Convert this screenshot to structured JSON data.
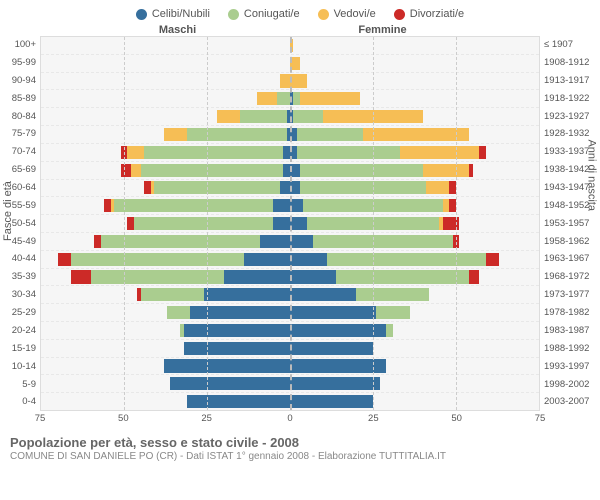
{
  "legend": [
    {
      "label": "Celibi/Nubili",
      "color": "#366f9d"
    },
    {
      "label": "Coniugati/e",
      "color": "#aacd8f"
    },
    {
      "label": "Vedovi/e",
      "color": "#f6be55"
    },
    {
      "label": "Divorziati/e",
      "color": "#cc2a27"
    }
  ],
  "headers": {
    "male": "Maschi",
    "female": "Femmine"
  },
  "axis_labels": {
    "left": "Fasce di età",
    "right": "Anni di nascita"
  },
  "age_labels": [
    "100+",
    "95-99",
    "90-94",
    "85-89",
    "80-84",
    "75-79",
    "70-74",
    "65-69",
    "60-64",
    "55-59",
    "50-54",
    "45-49",
    "40-44",
    "35-39",
    "30-34",
    "25-29",
    "20-24",
    "15-19",
    "10-14",
    "5-9",
    "0-4"
  ],
  "birth_labels": [
    "≤ 1907",
    "1908-1912",
    "1913-1917",
    "1918-1922",
    "1923-1927",
    "1928-1932",
    "1933-1937",
    "1938-1942",
    "1943-1947",
    "1948-1952",
    "1953-1957",
    "1958-1962",
    "1963-1967",
    "1968-1972",
    "1973-1977",
    "1978-1982",
    "1983-1987",
    "1988-1992",
    "1993-1997",
    "1998-2002",
    "2003-2007"
  ],
  "x_max": 75,
  "x_ticks": [
    75,
    50,
    25,
    0,
    25,
    50,
    75
  ],
  "male": [
    {
      "c": 0,
      "m": 0,
      "w": 0,
      "d": 0
    },
    {
      "c": 0,
      "m": 0,
      "w": 0,
      "d": 0
    },
    {
      "c": 0,
      "m": 0,
      "w": 3,
      "d": 0
    },
    {
      "c": 0,
      "m": 4,
      "w": 6,
      "d": 0
    },
    {
      "c": 1,
      "m": 14,
      "w": 7,
      "d": 0
    },
    {
      "c": 1,
      "m": 30,
      "w": 7,
      "d": 0
    },
    {
      "c": 2,
      "m": 42,
      "w": 5,
      "d": 2
    },
    {
      "c": 2,
      "m": 43,
      "w": 3,
      "d": 3
    },
    {
      "c": 3,
      "m": 38,
      "w": 1,
      "d": 2
    },
    {
      "c": 5,
      "m": 48,
      "w": 1,
      "d": 2
    },
    {
      "c": 5,
      "m": 42,
      "w": 0,
      "d": 2
    },
    {
      "c": 9,
      "m": 48,
      "w": 0,
      "d": 2
    },
    {
      "c": 14,
      "m": 52,
      "w": 0,
      "d": 4
    },
    {
      "c": 20,
      "m": 40,
      "w": 0,
      "d": 6
    },
    {
      "c": 26,
      "m": 19,
      "w": 0,
      "d": 1
    },
    {
      "c": 30,
      "m": 7,
      "w": 0,
      "d": 0
    },
    {
      "c": 32,
      "m": 1,
      "w": 0,
      "d": 0
    },
    {
      "c": 32,
      "m": 0,
      "w": 0,
      "d": 0
    },
    {
      "c": 38,
      "m": 0,
      "w": 0,
      "d": 0
    },
    {
      "c": 36,
      "m": 0,
      "w": 0,
      "d": 0
    },
    {
      "c": 31,
      "m": 0,
      "w": 0,
      "d": 0
    }
  ],
  "female": [
    {
      "c": 0,
      "m": 0,
      "w": 1,
      "d": 0
    },
    {
      "c": 0,
      "m": 0,
      "w": 3,
      "d": 0
    },
    {
      "c": 0,
      "m": 0,
      "w": 5,
      "d": 0
    },
    {
      "c": 1,
      "m": 2,
      "w": 18,
      "d": 0
    },
    {
      "c": 1,
      "m": 9,
      "w": 30,
      "d": 0
    },
    {
      "c": 2,
      "m": 20,
      "w": 32,
      "d": 0
    },
    {
      "c": 2,
      "m": 31,
      "w": 24,
      "d": 2
    },
    {
      "c": 3,
      "m": 37,
      "w": 14,
      "d": 1
    },
    {
      "c": 3,
      "m": 38,
      "w": 7,
      "d": 2
    },
    {
      "c": 4,
      "m": 42,
      "w": 2,
      "d": 2
    },
    {
      "c": 5,
      "m": 40,
      "w": 1,
      "d": 5
    },
    {
      "c": 7,
      "m": 42,
      "w": 0,
      "d": 2
    },
    {
      "c": 11,
      "m": 48,
      "w": 0,
      "d": 4
    },
    {
      "c": 14,
      "m": 40,
      "w": 0,
      "d": 3
    },
    {
      "c": 20,
      "m": 22,
      "w": 0,
      "d": 0
    },
    {
      "c": 26,
      "m": 10,
      "w": 0,
      "d": 0
    },
    {
      "c": 29,
      "m": 2,
      "w": 0,
      "d": 0
    },
    {
      "c": 25,
      "m": 0,
      "w": 0,
      "d": 0
    },
    {
      "c": 29,
      "m": 0,
      "w": 0,
      "d": 0
    },
    {
      "c": 27,
      "m": 0,
      "w": 0,
      "d": 0
    },
    {
      "c": 25,
      "m": 0,
      "w": 0,
      "d": 0
    }
  ],
  "footer": {
    "title": "Popolazione per età, sesso e stato civile - 2008",
    "sub": "COMUNE DI SAN DANIELE PO (CR) - Dati ISTAT 1° gennaio 2008 - Elaborazione TUTTITALIA.IT"
  },
  "colors": {
    "c": "#366f9d",
    "m": "#aacd8f",
    "w": "#f6be55",
    "d": "#cc2a27"
  }
}
